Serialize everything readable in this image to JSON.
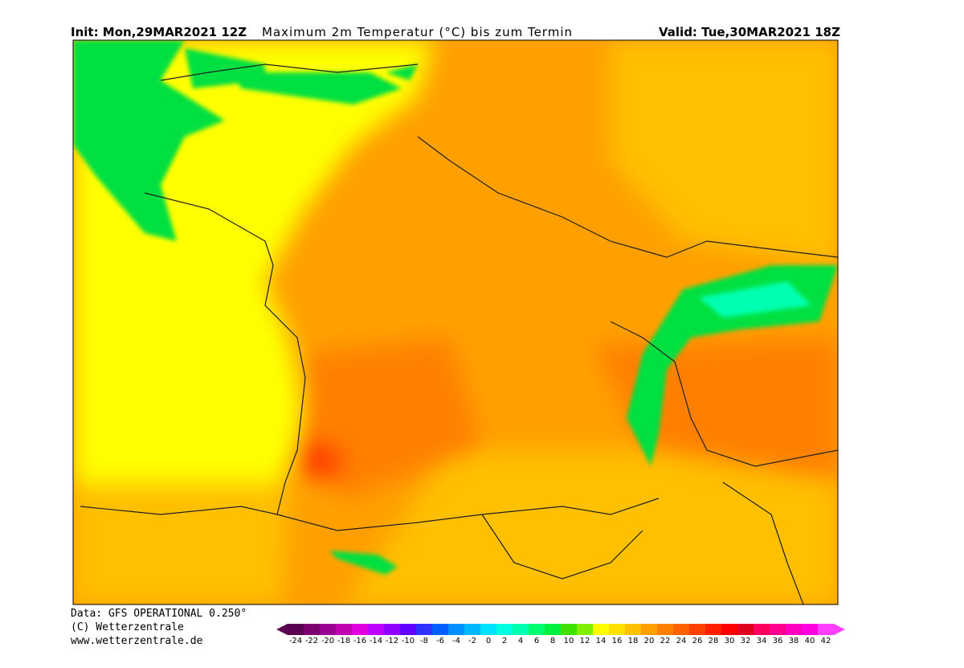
{
  "header": {
    "init": "Init: Mon,29MAR2021 12Z",
    "title": "Maximum 2m Temperatur (°C) bis zum Termin",
    "valid": "Valid: Tue,30MAR2021 18Z"
  },
  "footer": {
    "data": "Data: GFS OPERATIONAL 0.250°",
    "copyright": "(C) Wetterzentrale",
    "url": "www.wetterzentrale.de"
  },
  "colorbar": {
    "labels": [
      -24,
      -22,
      -20,
      -18,
      -16,
      -14,
      -12,
      -10,
      -8,
      -6,
      -4,
      -2,
      0,
      2,
      4,
      6,
      8,
      10,
      12,
      14,
      16,
      18,
      20,
      22,
      24,
      26,
      28,
      30,
      32,
      34,
      36,
      38,
      40,
      42
    ],
    "colors": [
      "#5a0050",
      "#7a0070",
      "#9a0090",
      "#c000b0",
      "#e000e0",
      "#c000ff",
      "#9000ff",
      "#6000ff",
      "#3030ff",
      "#0060ff",
      "#0090ff",
      "#00b8ff",
      "#00e0ff",
      "#00ffe0",
      "#00ffb0",
      "#00ff70",
      "#00f040",
      "#40e000",
      "#80f000",
      "#ffff00",
      "#ffe000",
      "#ffc000",
      "#ffa000",
      "#ff8000",
      "#ff6000",
      "#ff4000",
      "#ff2000",
      "#ff0000",
      "#e00020",
      "#ff0060",
      "#ff0090",
      "#ff00c0",
      "#ff00e0",
      "#ff40ff"
    ]
  }
}
